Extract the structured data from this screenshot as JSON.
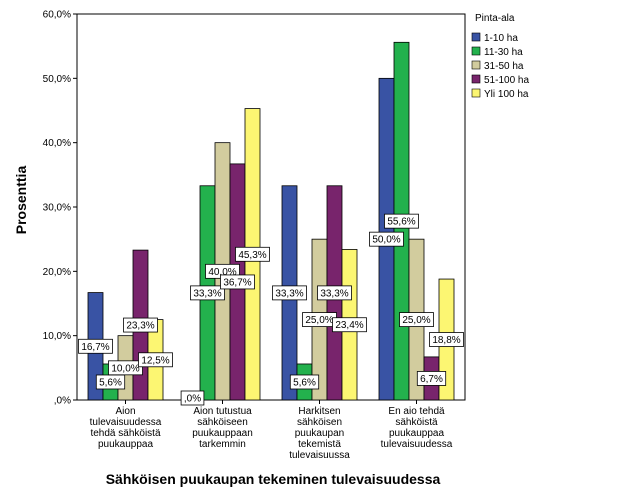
{
  "chart_data": {
    "type": "bar",
    "xlabel": "Sähköisen puukaupan tekeminen tulevaisuudessa",
    "ylabel": "Prosenttia",
    "ylim": [
      0,
      60
    ],
    "yticks": [
      "0%",
      "10,0%",
      "20,0%",
      "30,0%",
      "40,0%",
      "50,0%",
      "60,0%"
    ],
    "yticks_display": [
      ",0%",
      "10,0%",
      "20,0%",
      "30,0%",
      "40,0%",
      "50,0%",
      "60,0%"
    ],
    "grid": false,
    "legend_title": "Pinta-ala",
    "legend_position": "right",
    "categories": [
      [
        "Aion",
        "tulevaisuudessa",
        "tehdä sähköistä",
        "puukauppaa"
      ],
      [
        "Aion tutustua",
        "sähköiseen",
        "puukauppaan",
        "tarkemmin"
      ],
      [
        "Harkitsen",
        "sähköisen",
        "puukaupan",
        "tekemistä",
        "tulevaisuussa"
      ],
      [
        "En aio tehdä",
        "sähköistä",
        "puukauppaa",
        "tulevaisuudessa"
      ]
    ],
    "series": [
      {
        "name": "1-10 ha",
        "color": "#3953a4",
        "values": [
          16.7,
          0,
          33.3,
          50.0
        ],
        "labels": [
          "16,7%",
          ",0%",
          "33,3%",
          "50,0%"
        ]
      },
      {
        "name": "11-30 ha",
        "color": "#23b14d",
        "values": [
          5.6,
          33.3,
          5.6,
          55.6
        ],
        "labels": [
          "5,6%",
          "33,3%",
          "5,6%",
          "55,6%"
        ]
      },
      {
        "name": "31-50 ha",
        "color": "#d2cc9e",
        "values": [
          10.0,
          40.0,
          25.0,
          25.0
        ],
        "labels": [
          "10,0%",
          "40,0%",
          "25,0%",
          "25,0%"
        ]
      },
      {
        "name": "51-100 ha",
        "color": "#78246c",
        "values": [
          23.3,
          36.7,
          33.3,
          6.7
        ],
        "labels": [
          "23,3%",
          "36,7%",
          "33,3%",
          "6,7%"
        ]
      },
      {
        "name": "Yli 100 ha",
        "color": "#fcf672",
        "values": [
          12.5,
          45.3,
          23.4,
          18.8
        ],
        "labels": [
          "12,5%",
          "45,3%",
          "23,4%",
          "18,8%"
        ]
      }
    ]
  }
}
